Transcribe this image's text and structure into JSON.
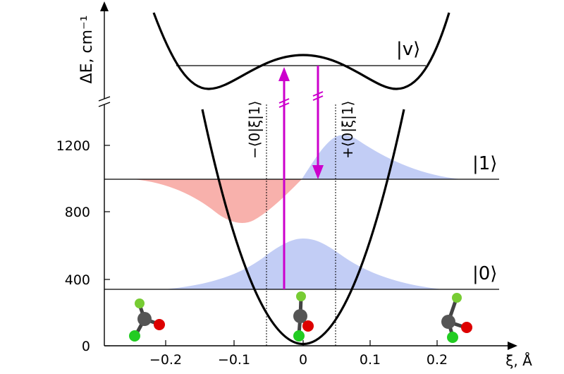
{
  "axes": {
    "y_label": "ΔE, cm⁻¹",
    "x_label": "ξ, Å",
    "x_ticks": [
      "−0.2",
      "−0.1",
      "0",
      "0.1",
      "0.2"
    ],
    "y_ticks": [
      "0",
      "400",
      "800",
      "1200"
    ]
  },
  "states": {
    "excited": "|v⟩",
    "first": "|1⟩",
    "ground": "|0⟩"
  },
  "expectation_labels": {
    "minus": "−⟨0|ξ|1⟩",
    "plus": "+⟨0|ξ|1⟩"
  },
  "colors": {
    "transition_arrow": "#cc00cc",
    "positive_lobe": "#b7c4f3",
    "negative_lobe": "#f7a8a3",
    "curve": "#000000",
    "carbon": "#555555",
    "oxygen": "#dd0000",
    "chlorine_bright": "#22cc22",
    "chlorine_light": "#77cc33"
  },
  "molecules": [
    "molecule-left",
    "molecule-center",
    "molecule-right"
  ]
}
